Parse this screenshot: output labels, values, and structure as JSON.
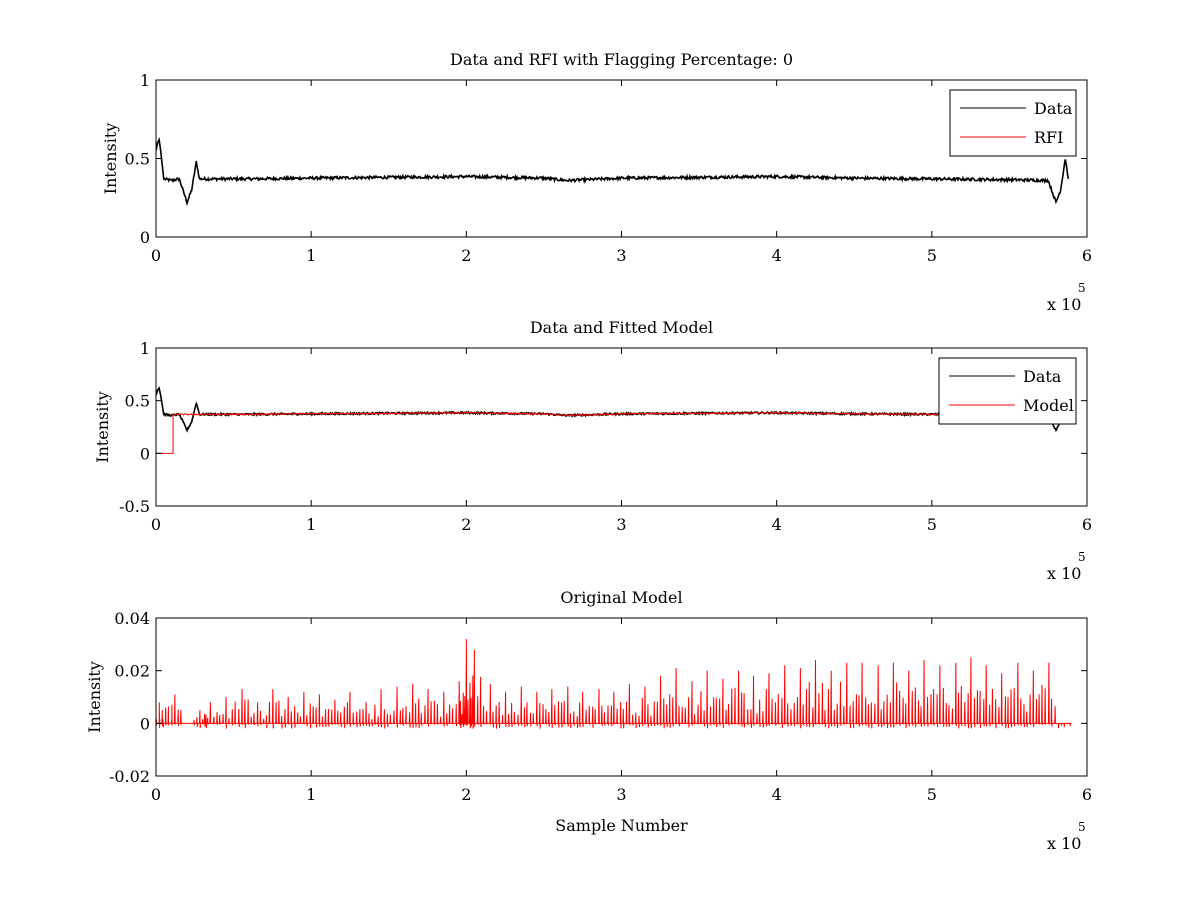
{
  "chart_data": [
    {
      "type": "line",
      "title": "Data and RFI with Flagging Percentage: 0",
      "xlabel": "",
      "ylabel": "Intensity",
      "xlim": [
        0,
        6
      ],
      "ylim": [
        0,
        1
      ],
      "x_multiplier_label": "x 10",
      "x_multiplier_exponent": "5",
      "xticks": [
        "0",
        "1",
        "2",
        "3",
        "4",
        "5",
        "6"
      ],
      "yticks": [
        "0",
        "0.5",
        "1"
      ],
      "legend": "top-right",
      "series": [
        {
          "name": "Data",
          "color": "#000000",
          "x": [
            0,
            0.01,
            0.02,
            0.03,
            0.05,
            0.1,
            0.15,
            0.18,
            0.2,
            0.23,
            0.26,
            0.28,
            0.3,
            0.6,
            1.0,
            1.5,
            2.0,
            2.5,
            2.65,
            3.0,
            3.5,
            4.0,
            4.5,
            5.0,
            5.5,
            5.75,
            5.8,
            5.83,
            5.86,
            5.88
          ],
          "y": [
            0.55,
            0.6,
            0.62,
            0.55,
            0.37,
            0.36,
            0.37,
            0.28,
            0.22,
            0.3,
            0.48,
            0.37,
            0.37,
            0.37,
            0.375,
            0.38,
            0.385,
            0.375,
            0.36,
            0.375,
            0.38,
            0.385,
            0.375,
            0.37,
            0.365,
            0.36,
            0.22,
            0.3,
            0.5,
            0.37
          ]
        },
        {
          "name": "RFI",
          "color": "#ff0000",
          "x": [],
          "y": []
        }
      ]
    },
    {
      "type": "line",
      "title": "Data and Fitted Model",
      "xlabel": "",
      "ylabel": "Intensity",
      "xlim": [
        0,
        6
      ],
      "ylim": [
        -0.5,
        1
      ],
      "x_multiplier_label": "x 10",
      "x_multiplier_exponent": "5",
      "xticks": [
        "0",
        "1",
        "2",
        "3",
        "4",
        "5",
        "6"
      ],
      "yticks": [
        "-0.5",
        "0",
        "0.5",
        "1"
      ],
      "legend": "top-right",
      "series": [
        {
          "name": "Data",
          "color": "#000000",
          "x": [
            0,
            0.01,
            0.02,
            0.03,
            0.05,
            0.1,
            0.15,
            0.18,
            0.2,
            0.23,
            0.26,
            0.28,
            0.3,
            0.6,
            1.0,
            1.5,
            2.0,
            2.5,
            2.65,
            3.0,
            3.5,
            4.0,
            4.5,
            5.0,
            5.5,
            5.75,
            5.8,
            5.83,
            5.86,
            5.88
          ],
          "y": [
            0.55,
            0.6,
            0.62,
            0.55,
            0.37,
            0.36,
            0.37,
            0.28,
            0.22,
            0.3,
            0.48,
            0.37,
            0.37,
            0.37,
            0.375,
            0.38,
            0.385,
            0.375,
            0.36,
            0.375,
            0.38,
            0.385,
            0.375,
            0.37,
            0.365,
            0.36,
            0.22,
            0.3,
            0.5,
            0.37
          ]
        },
        {
          "name": "Model",
          "color": "#ff0000",
          "x": [
            0,
            0.11,
            0.11,
            0.3,
            0.6,
            1.0,
            1.5,
            2.0,
            2.5,
            2.65,
            3.0,
            3.5,
            4.0,
            4.5,
            5.0,
            5.5,
            5.75
          ],
          "y": [
            0,
            0,
            0.37,
            0.37,
            0.37,
            0.375,
            0.38,
            0.385,
            0.375,
            0.36,
            0.375,
            0.38,
            0.385,
            0.375,
            0.37,
            0.365,
            0.36
          ]
        }
      ]
    },
    {
      "type": "line",
      "title": "Original Model",
      "xlabel": "Sample Number",
      "ylabel": "Intensity",
      "xlim": [
        0,
        6
      ],
      "ylim": [
        -0.02,
        0.04
      ],
      "x_multiplier_label": "x 10",
      "x_multiplier_exponent": "5",
      "xticks": [
        "0",
        "1",
        "2",
        "3",
        "4",
        "5",
        "6"
      ],
      "yticks": [
        "-0.02",
        "0",
        "0.02",
        "0.04"
      ],
      "legend": "none",
      "series": [
        {
          "color": "#ff0000",
          "x": [
            0.02,
            0.06,
            0.12,
            0.28,
            0.35,
            0.45,
            0.55,
            0.65,
            0.75,
            0.85,
            0.95,
            1.05,
            1.15,
            1.25,
            1.35,
            1.45,
            1.55,
            1.65,
            1.75,
            1.85,
            1.95,
            2.0,
            2.05,
            2.15,
            2.25,
            2.35,
            2.45,
            2.55,
            2.65,
            2.75,
            2.85,
            2.95,
            3.05,
            3.15,
            3.25,
            3.35,
            3.45,
            3.55,
            3.65,
            3.75,
            3.85,
            3.95,
            4.05,
            4.15,
            4.25,
            4.35,
            4.45,
            4.55,
            4.65,
            4.75,
            4.85,
            4.95,
            5.05,
            5.15,
            5.25,
            5.35,
            5.45,
            5.55,
            5.65,
            5.75,
            5.85
          ],
          "y": [
            0.008,
            0.006,
            0.011,
            0.005,
            0.008,
            0.01,
            0.013,
            0.008,
            0.013,
            0.01,
            0.012,
            0.011,
            0.009,
            0.012,
            0.008,
            0.013,
            0.014,
            0.015,
            0.013,
            0.012,
            0.016,
            0.032,
            0.028,
            0.015,
            0.012,
            0.014,
            0.012,
            0.013,
            0.014,
            0.012,
            0.013,
            0.012,
            0.015,
            0.014,
            0.018,
            0.021,
            0.016,
            0.02,
            0.017,
            0.02,
            0.018,
            0.019,
            0.022,
            0.021,
            0.024,
            0.02,
            0.023,
            0.023,
            0.022,
            0.023,
            0.02,
            0.024,
            0.022,
            0.023,
            0.025,
            0.022,
            0.019,
            0.023,
            0.02,
            0.023,
            0.0
          ]
        }
      ]
    }
  ]
}
